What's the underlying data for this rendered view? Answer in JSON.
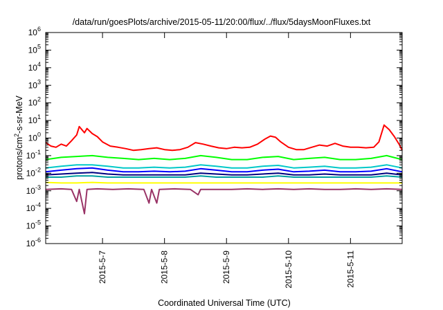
{
  "chart_data": {
    "type": "line",
    "title": "/data/run/goesPlots/archive/2015-05-11/20:00/flux/../flux/5daysMoonFluxes.txt",
    "xlabel": "Coordinated Universal Time (UTC)",
    "ylabel": {
      "base": "protons/cm",
      "sup": "2",
      "rest": "-s-sr-MeV"
    },
    "xlim": [
      "2015-05-06T02:00",
      "2015-05-11T20:00"
    ],
    "ylim": [
      1e-06,
      1000000.0
    ],
    "yscale": "log",
    "grid": false,
    "legend": "none",
    "x_ticks": [
      {
        "date": "2015-05-07T00:00",
        "label": "2015-5-7"
      },
      {
        "date": "2015-05-08T00:00",
        "label": "2015-5-8"
      },
      {
        "date": "2015-05-09T00:00",
        "label": "2015-5-9"
      },
      {
        "date": "2015-05-10T00:00",
        "label": "2015-5-10"
      },
      {
        "date": "2015-05-11T00:00",
        "label": "2015-5-11"
      }
    ],
    "y_ticks": [
      {
        "value": 1e-06,
        "base": "10",
        "exp": "-6"
      },
      {
        "value": 1e-05,
        "base": "10",
        "exp": "-5"
      },
      {
        "value": 0.0001,
        "base": "10",
        "exp": "-4"
      },
      {
        "value": 0.001,
        "base": "10",
        "exp": "-3"
      },
      {
        "value": 0.01,
        "base": "10",
        "exp": "-2"
      },
      {
        "value": 0.1,
        "base": "10",
        "exp": "-1"
      },
      {
        "value": 1,
        "base": "10",
        "exp": "0"
      },
      {
        "value": 10,
        "base": "10",
        "exp": "1"
      },
      {
        "value": 100,
        "base": "10",
        "exp": "2"
      },
      {
        "value": 1000,
        "base": "10",
        "exp": "3"
      },
      {
        "value": 10000,
        "base": "10",
        "exp": "4"
      },
      {
        "value": 100000,
        "base": "10",
        "exp": "5"
      },
      {
        "value": 1000000,
        "base": "10",
        "exp": "6"
      }
    ],
    "series": [
      {
        "color": "#ff0000",
        "values": [
          [
            "2015-05-06T02:00",
            0.55
          ],
          [
            "2015-05-06T04:00",
            0.35
          ],
          [
            "2015-05-06T06:00",
            0.3
          ],
          [
            "2015-05-06T08:00",
            0.45
          ],
          [
            "2015-05-06T10:00",
            0.35
          ],
          [
            "2015-05-06T12:00",
            0.7
          ],
          [
            "2015-05-06T14:00",
            1.5
          ],
          [
            "2015-05-06T15:00",
            4.5
          ],
          [
            "2015-05-06T17:00",
            2
          ],
          [
            "2015-05-06T18:00",
            3.5
          ],
          [
            "2015-05-06T20:00",
            1.8
          ],
          [
            "2015-05-06T22:00",
            1.2
          ],
          [
            "2015-05-07T00:00",
            0.6
          ],
          [
            "2015-05-07T03:00",
            0.35
          ],
          [
            "2015-05-07T06:00",
            0.3
          ],
          [
            "2015-05-07T09:00",
            0.25
          ],
          [
            "2015-05-07T12:00",
            0.2
          ],
          [
            "2015-05-07T15:00",
            0.22
          ],
          [
            "2015-05-07T18:00",
            0.25
          ],
          [
            "2015-05-07T21:00",
            0.28
          ],
          [
            "2015-05-08T00:00",
            0.22
          ],
          [
            "2015-05-08T03:00",
            0.2
          ],
          [
            "2015-05-08T06:00",
            0.22
          ],
          [
            "2015-05-08T09:00",
            0.3
          ],
          [
            "2015-05-08T12:00",
            0.55
          ],
          [
            "2015-05-08T15:00",
            0.45
          ],
          [
            "2015-05-08T18:00",
            0.35
          ],
          [
            "2015-05-08T21:00",
            0.28
          ],
          [
            "2015-05-09T00:00",
            0.25
          ],
          [
            "2015-05-09T03:00",
            0.3
          ],
          [
            "2015-05-09T06:00",
            0.28
          ],
          [
            "2015-05-09T09:00",
            0.3
          ],
          [
            "2015-05-09T12:00",
            0.45
          ],
          [
            "2015-05-09T15:00",
            0.9
          ],
          [
            "2015-05-09T17:00",
            1.3
          ],
          [
            "2015-05-09T19:00",
            1.1
          ],
          [
            "2015-05-09T21:00",
            0.6
          ],
          [
            "2015-05-10T00:00",
            0.3
          ],
          [
            "2015-05-10T03:00",
            0.22
          ],
          [
            "2015-05-10T06:00",
            0.22
          ],
          [
            "2015-05-10T09:00",
            0.3
          ],
          [
            "2015-05-10T12:00",
            0.4
          ],
          [
            "2015-05-10T15:00",
            0.35
          ],
          [
            "2015-05-10T18:00",
            0.5
          ],
          [
            "2015-05-10T21:00",
            0.35
          ],
          [
            "2015-05-11T00:00",
            0.3
          ],
          [
            "2015-05-11T03:00",
            0.3
          ],
          [
            "2015-05-11T06:00",
            0.28
          ],
          [
            "2015-05-11T09:00",
            0.3
          ],
          [
            "2015-05-11T11:00",
            0.6
          ],
          [
            "2015-05-11T13:00",
            5.5
          ],
          [
            "2015-05-11T15:00",
            3
          ],
          [
            "2015-05-11T17:00",
            1.2
          ],
          [
            "2015-05-11T19:00",
            0.4
          ],
          [
            "2015-05-11T20:00",
            0.2
          ]
        ]
      },
      {
        "color": "#00ff00",
        "values": [
          [
            "2015-05-06T02:00",
            0.06
          ],
          [
            "2015-05-06T08:00",
            0.08
          ],
          [
            "2015-05-06T14:00",
            0.09
          ],
          [
            "2015-05-06T20:00",
            0.1
          ],
          [
            "2015-05-07T02:00",
            0.08
          ],
          [
            "2015-05-07T08:00",
            0.07
          ],
          [
            "2015-05-07T14:00",
            0.06
          ],
          [
            "2015-05-07T20:00",
            0.07
          ],
          [
            "2015-05-08T02:00",
            0.06
          ],
          [
            "2015-05-08T08:00",
            0.07
          ],
          [
            "2015-05-08T14:00",
            0.1
          ],
          [
            "2015-05-08T20:00",
            0.08
          ],
          [
            "2015-05-09T02:00",
            0.06
          ],
          [
            "2015-05-09T08:00",
            0.06
          ],
          [
            "2015-05-09T14:00",
            0.08
          ],
          [
            "2015-05-09T20:00",
            0.09
          ],
          [
            "2015-05-10T02:00",
            0.06
          ],
          [
            "2015-05-10T08:00",
            0.07
          ],
          [
            "2015-05-10T14:00",
            0.08
          ],
          [
            "2015-05-10T20:00",
            0.06
          ],
          [
            "2015-05-11T02:00",
            0.06
          ],
          [
            "2015-05-11T08:00",
            0.07
          ],
          [
            "2015-05-11T14:00",
            0.1
          ],
          [
            "2015-05-11T20:00",
            0.06
          ]
        ]
      },
      {
        "color": "#00c8c8",
        "values": [
          [
            "2015-05-06T02:00",
            0.02
          ],
          [
            "2015-05-06T08:00",
            0.025
          ],
          [
            "2015-05-06T14:00",
            0.03
          ],
          [
            "2015-05-06T20:00",
            0.03
          ],
          [
            "2015-05-07T02:00",
            0.025
          ],
          [
            "2015-05-07T08:00",
            0.02
          ],
          [
            "2015-05-07T14:00",
            0.02
          ],
          [
            "2015-05-07T20:00",
            0.022
          ],
          [
            "2015-05-08T02:00",
            0.02
          ],
          [
            "2015-05-08T08:00",
            0.022
          ],
          [
            "2015-05-08T14:00",
            0.03
          ],
          [
            "2015-05-08T20:00",
            0.025
          ],
          [
            "2015-05-09T02:00",
            0.02
          ],
          [
            "2015-05-09T08:00",
            0.02
          ],
          [
            "2015-05-09T14:00",
            0.025
          ],
          [
            "2015-05-09T20:00",
            0.028
          ],
          [
            "2015-05-10T02:00",
            0.02
          ],
          [
            "2015-05-10T08:00",
            0.022
          ],
          [
            "2015-05-10T14:00",
            0.025
          ],
          [
            "2015-05-10T20:00",
            0.02
          ],
          [
            "2015-05-11T02:00",
            0.02
          ],
          [
            "2015-05-11T08:00",
            0.022
          ],
          [
            "2015-05-11T14:00",
            0.03
          ],
          [
            "2015-05-11T20:00",
            0.02
          ]
        ]
      },
      {
        "color": "#0000ff",
        "values": [
          [
            "2015-05-06T02:00",
            0.012
          ],
          [
            "2015-05-06T08:00",
            0.015
          ],
          [
            "2015-05-06T14:00",
            0.018
          ],
          [
            "2015-05-06T20:00",
            0.02
          ],
          [
            "2015-05-07T02:00",
            0.015
          ],
          [
            "2015-05-07T08:00",
            0.012
          ],
          [
            "2015-05-07T14:00",
            0.012
          ],
          [
            "2015-05-07T20:00",
            0.013
          ],
          [
            "2015-05-08T02:00",
            0.012
          ],
          [
            "2015-05-08T08:00",
            0.013
          ],
          [
            "2015-05-08T14:00",
            0.018
          ],
          [
            "2015-05-08T20:00",
            0.015
          ],
          [
            "2015-05-09T02:00",
            0.012
          ],
          [
            "2015-05-09T08:00",
            0.012
          ],
          [
            "2015-05-09T14:00",
            0.015
          ],
          [
            "2015-05-09T20:00",
            0.017
          ],
          [
            "2015-05-10T02:00",
            0.012
          ],
          [
            "2015-05-10T08:00",
            0.013
          ],
          [
            "2015-05-10T14:00",
            0.015
          ],
          [
            "2015-05-10T20:00",
            0.012
          ],
          [
            "2015-05-11T02:00",
            0.012
          ],
          [
            "2015-05-11T08:00",
            0.013
          ],
          [
            "2015-05-11T14:00",
            0.018
          ],
          [
            "2015-05-11T20:00",
            0.012
          ]
        ]
      },
      {
        "color": "#000080",
        "values": [
          [
            "2015-05-06T02:00",
            0.008
          ],
          [
            "2015-05-06T08:00",
            0.009
          ],
          [
            "2015-05-06T14:00",
            0.01
          ],
          [
            "2015-05-06T20:00",
            0.011
          ],
          [
            "2015-05-07T02:00",
            0.009
          ],
          [
            "2015-05-07T08:00",
            0.008
          ],
          [
            "2015-05-07T14:00",
            0.008
          ],
          [
            "2015-05-07T20:00",
            0.008
          ],
          [
            "2015-05-08T02:00",
            0.008
          ],
          [
            "2015-05-08T08:00",
            0.008
          ],
          [
            "2015-05-08T14:00",
            0.01
          ],
          [
            "2015-05-08T20:00",
            0.009
          ],
          [
            "2015-05-09T02:00",
            0.008
          ],
          [
            "2015-05-09T08:00",
            0.008
          ],
          [
            "2015-05-09T14:00",
            0.009
          ],
          [
            "2015-05-09T20:00",
            0.01
          ],
          [
            "2015-05-10T02:00",
            0.008
          ],
          [
            "2015-05-10T08:00",
            0.008
          ],
          [
            "2015-05-10T14:00",
            0.009
          ],
          [
            "2015-05-10T20:00",
            0.008
          ],
          [
            "2015-05-11T02:00",
            0.008
          ],
          [
            "2015-05-11T08:00",
            0.008
          ],
          [
            "2015-05-11T14:00",
            0.01
          ],
          [
            "2015-05-11T20:00",
            0.008
          ]
        ]
      },
      {
        "color": "#00a0a0",
        "values": [
          [
            "2015-05-06T02:00",
            0.006
          ],
          [
            "2015-05-06T08:00",
            0.006
          ],
          [
            "2015-05-06T14:00",
            0.007
          ],
          [
            "2015-05-06T20:00",
            0.007
          ],
          [
            "2015-05-07T02:00",
            0.006
          ],
          [
            "2015-05-07T08:00",
            0.006
          ],
          [
            "2015-05-07T14:00",
            0.006
          ],
          [
            "2015-05-07T20:00",
            0.006
          ],
          [
            "2015-05-08T02:00",
            0.006
          ],
          [
            "2015-05-08T08:00",
            0.006
          ],
          [
            "2015-05-08T14:00",
            0.007
          ],
          [
            "2015-05-08T20:00",
            0.006
          ],
          [
            "2015-05-09T02:00",
            0.006
          ],
          [
            "2015-05-09T08:00",
            0.006
          ],
          [
            "2015-05-09T14:00",
            0.006
          ],
          [
            "2015-05-09T20:00",
            0.007
          ],
          [
            "2015-05-10T02:00",
            0.006
          ],
          [
            "2015-05-10T08:00",
            0.006
          ],
          [
            "2015-05-10T14:00",
            0.006
          ],
          [
            "2015-05-10T20:00",
            0.006
          ],
          [
            "2015-05-11T02:00",
            0.006
          ],
          [
            "2015-05-11T08:00",
            0.006
          ],
          [
            "2015-05-11T14:00",
            0.007
          ],
          [
            "2015-05-11T20:00",
            0.006
          ]
        ]
      },
      {
        "color": "#ffff00",
        "values": [
          [
            "2015-05-06T02:00",
            0.003
          ],
          [
            "2015-05-06T08:00",
            0.0028
          ],
          [
            "2015-05-06T14:00",
            0.0028
          ],
          [
            "2015-05-06T20:00",
            0.003
          ],
          [
            "2015-05-07T02:00",
            0.0028
          ],
          [
            "2015-05-07T08:00",
            0.0028
          ],
          [
            "2015-05-07T14:00",
            0.0028
          ],
          [
            "2015-05-07T20:00",
            0.0028
          ],
          [
            "2015-05-08T02:00",
            0.0028
          ],
          [
            "2015-05-08T08:00",
            0.0028
          ],
          [
            "2015-05-08T14:00",
            0.0028
          ],
          [
            "2015-05-08T20:00",
            0.0028
          ],
          [
            "2015-05-09T02:00",
            0.0028
          ],
          [
            "2015-05-09T08:00",
            0.0028
          ],
          [
            "2015-05-09T14:00",
            0.0028
          ],
          [
            "2015-05-09T20:00",
            0.0028
          ],
          [
            "2015-05-10T02:00",
            0.0028
          ],
          [
            "2015-05-10T08:00",
            0.0028
          ],
          [
            "2015-05-10T14:00",
            0.0028
          ],
          [
            "2015-05-10T20:00",
            0.0028
          ],
          [
            "2015-05-11T02:00",
            0.0028
          ],
          [
            "2015-05-11T08:00",
            0.0028
          ],
          [
            "2015-05-11T14:00",
            0.0028
          ],
          [
            "2015-05-11T20:00",
            0.0028
          ]
        ]
      },
      {
        "color": "#993366",
        "values": [
          [
            "2015-05-06T02:00",
            0.0012
          ],
          [
            "2015-05-06T08:00",
            0.0013
          ],
          [
            "2015-05-06T12:00",
            0.0012
          ],
          [
            "2015-05-06T14:00",
            0.00025
          ],
          [
            "2015-05-06T15:00",
            0.0012
          ],
          [
            "2015-05-06T17:00",
            5e-05
          ],
          [
            "2015-05-06T18:00",
            0.0012
          ],
          [
            "2015-05-06T22:00",
            0.0013
          ],
          [
            "2015-05-07T04:00",
            0.0012
          ],
          [
            "2015-05-07T10:00",
            0.0013
          ],
          [
            "2015-05-07T16:00",
            0.0012
          ],
          [
            "2015-05-07T18:00",
            0.0002
          ],
          [
            "2015-05-07T19:00",
            0.0012
          ],
          [
            "2015-05-07T21:00",
            0.0002
          ],
          [
            "2015-05-07T22:00",
            0.0012
          ],
          [
            "2015-05-08T04:00",
            0.0013
          ],
          [
            "2015-05-08T10:00",
            0.0012
          ],
          [
            "2015-05-08T13:00",
            0.0006
          ],
          [
            "2015-05-08T14:00",
            0.0012
          ],
          [
            "2015-05-08T20:00",
            0.0012
          ],
          [
            "2015-05-09T02:00",
            0.0012
          ],
          [
            "2015-05-09T08:00",
            0.0013
          ],
          [
            "2015-05-09T14:00",
            0.0012
          ],
          [
            "2015-05-09T20:00",
            0.0013
          ],
          [
            "2015-05-10T02:00",
            0.0012
          ],
          [
            "2015-05-10T08:00",
            0.0013
          ],
          [
            "2015-05-10T14:00",
            0.0012
          ],
          [
            "2015-05-10T20:00",
            0.0012
          ],
          [
            "2015-05-11T02:00",
            0.0013
          ],
          [
            "2015-05-11T08:00",
            0.0012
          ],
          [
            "2015-05-11T14:00",
            0.0013
          ],
          [
            "2015-05-11T20:00",
            0.0012
          ]
        ]
      }
    ]
  }
}
